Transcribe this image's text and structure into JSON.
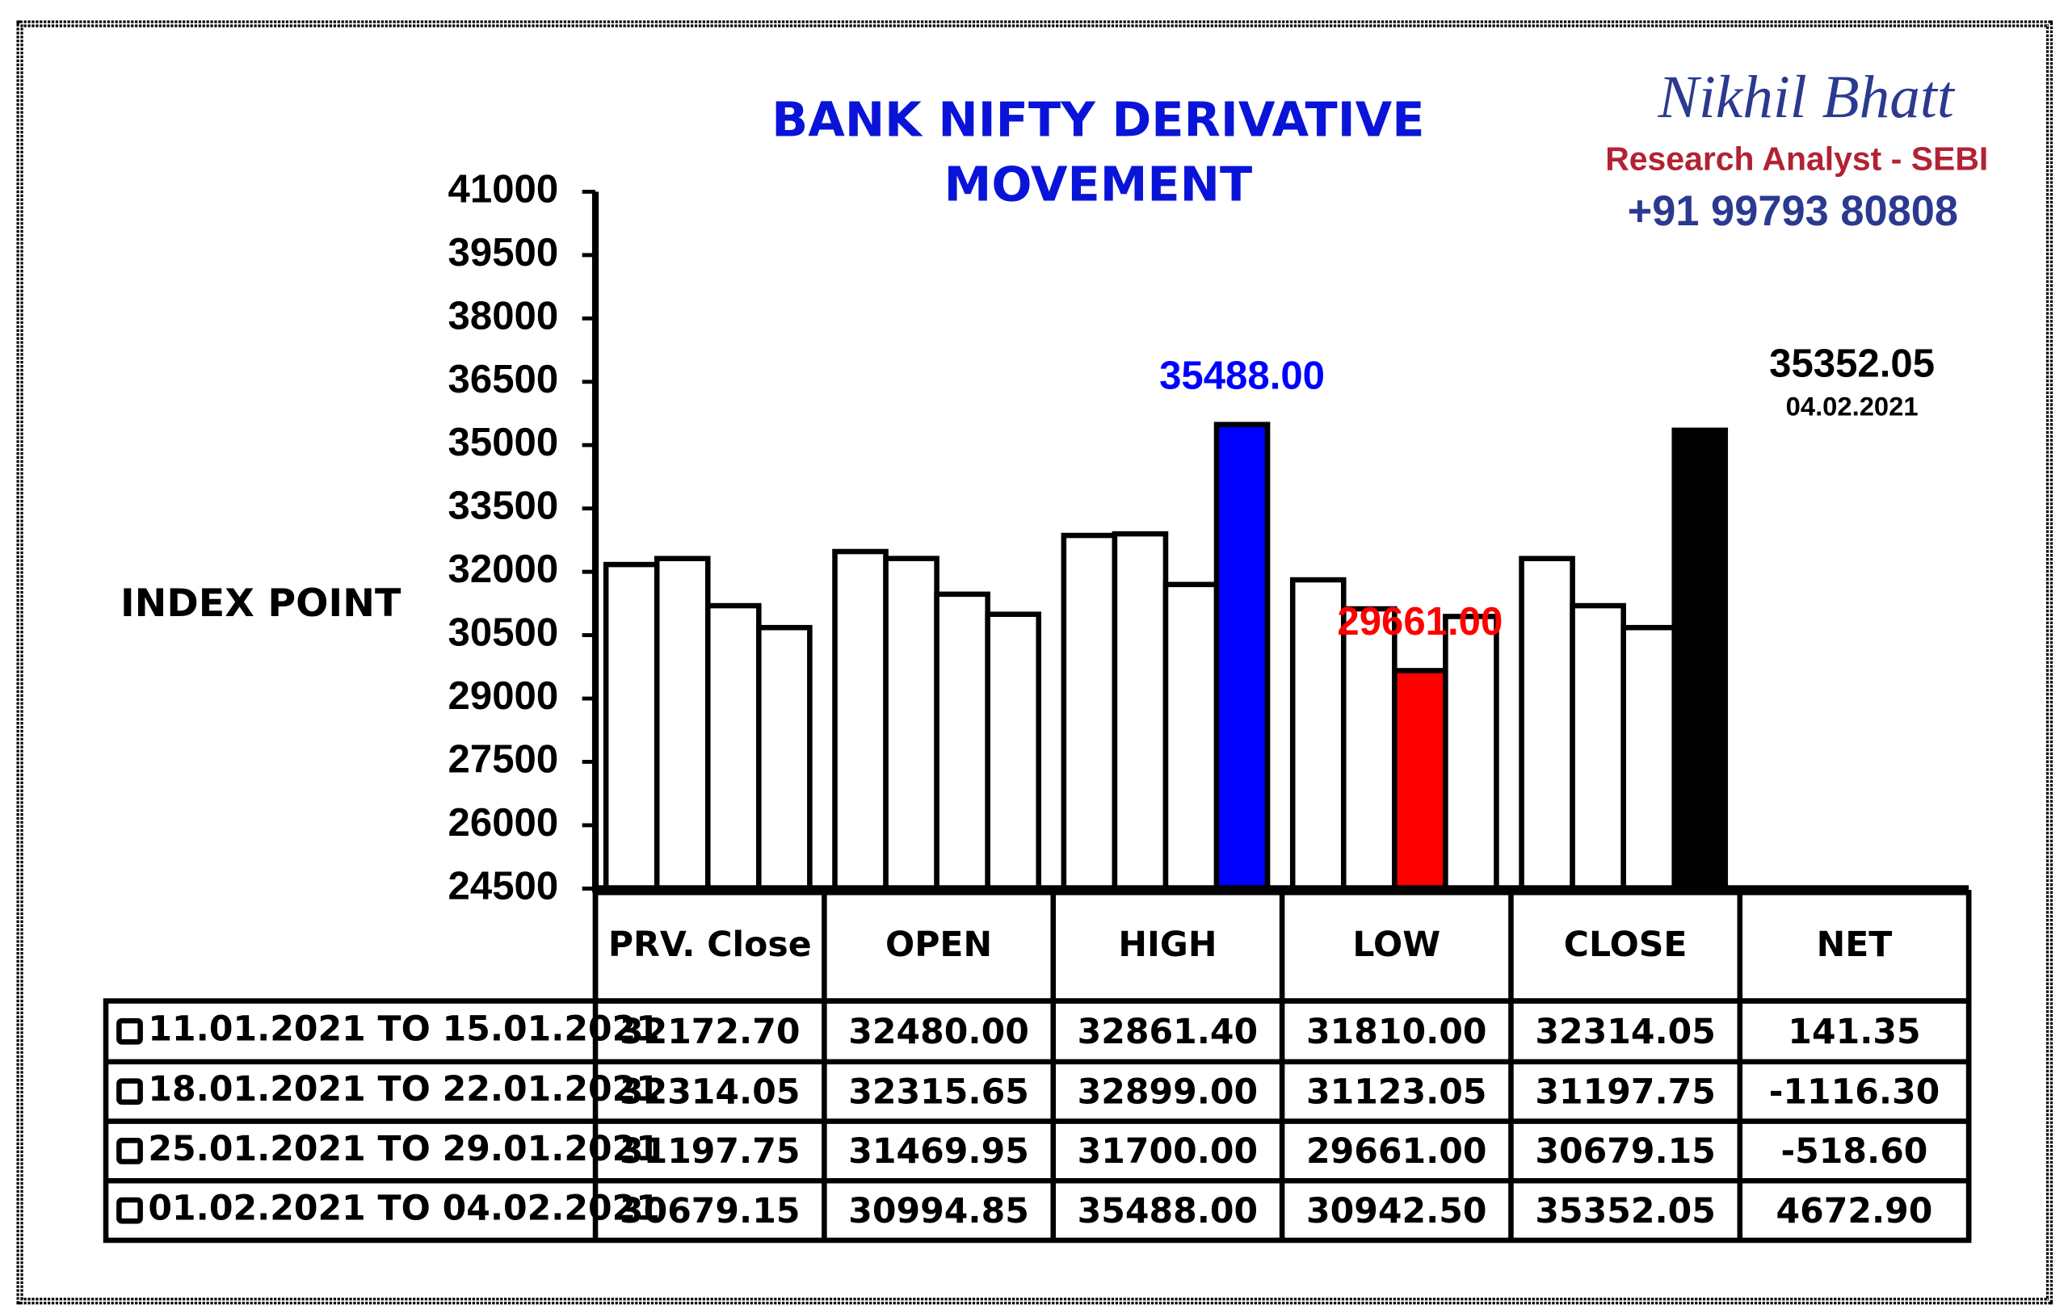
{
  "header": {
    "name": "Nikhil Bhatt",
    "role": "Research Analyst - SEBI",
    "phone": "+91 99793 80808"
  },
  "chart_data": {
    "type": "bar",
    "title": [
      "BANK NIFTY DERIVATIVE",
      "MOVEMENT"
    ],
    "y_label": "INDEX POINT",
    "categories": [
      "PRV. Close",
      "OPEN",
      "HIGH",
      "LOW",
      "CLOSE",
      "NET"
    ],
    "ylim": [
      24500,
      41000
    ],
    "yticks": [
      24500,
      26000,
      27500,
      29000,
      30500,
      32000,
      33500,
      35000,
      36500,
      38000,
      39500,
      41000
    ],
    "series": [
      {
        "name": "11.01.2021 TO 15.01.2021",
        "values": [
          32172.7,
          32480,
          32861.4,
          31810,
          32314.05,
          141.35
        ],
        "value_labels": [
          "32172.70",
          "32480.00",
          "32861.40",
          "31810.00",
          "32314.05",
          "141.35"
        ],
        "colors": [
          "#ffffff",
          "#ffffff",
          "#ffffff",
          "#ffffff",
          "#ffffff",
          null
        ]
      },
      {
        "name": "18.01.2021 TO 22.01.2021",
        "values": [
          32314.05,
          32315.65,
          32899,
          31123.05,
          31197.75,
          -1116.3
        ],
        "value_labels": [
          "32314.05",
          "32315.65",
          "32899.00",
          "31123.05",
          "31197.75",
          "-1116.30"
        ],
        "colors": [
          "#ffffff",
          "#ffffff",
          "#ffffff",
          "#ffffff",
          "#ffffff",
          null
        ]
      },
      {
        "name": "25.01.2021 TO 29.01.2021",
        "values": [
          31197.75,
          31469.95,
          31700,
          29661,
          30679.15,
          -518.6
        ],
        "value_labels": [
          "31197.75",
          "31469.95",
          "31700.00",
          "29661.00",
          "30679.15",
          "-518.60"
        ],
        "colors": [
          "#ffffff",
          "#ffffff",
          "#ffffff",
          "#ff0000",
          "#ffffff",
          null
        ]
      },
      {
        "name": "01.02.2021 TO 04.02.2021",
        "values": [
          30679.15,
          30994.85,
          35488,
          30942.5,
          35352.05,
          4672.9
        ],
        "value_labels": [
          "30679.15",
          "30994.85",
          "35488.00",
          "30942.50",
          "35352.05",
          "4672.90"
        ],
        "colors": [
          "#ffffff",
          "#ffffff",
          "#0000ff",
          "#ffffff",
          "#000000",
          null
        ]
      }
    ],
    "annotations": [
      {
        "series": 3,
        "category": 2,
        "label": "35488.00",
        "color": "#0000ff"
      },
      {
        "series": 2,
        "category": 3,
        "label": "29661.00",
        "color": "#ff0000"
      },
      {
        "series": 3,
        "category": 4,
        "label": "35352.05",
        "sublabel": "04.02.2021",
        "color": "#000000"
      }
    ]
  }
}
